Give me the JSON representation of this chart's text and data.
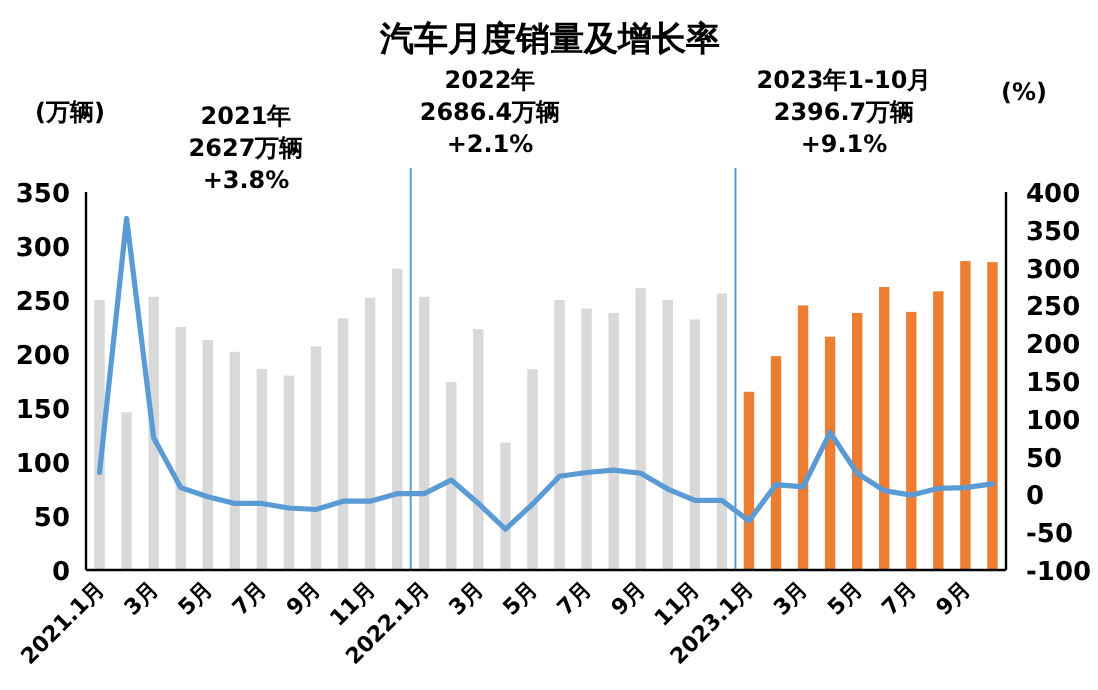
{
  "chart_data": {
    "type": "bar",
    "title": "汽车月度销量及增长率",
    "ylabel": "(万辆)",
    "y2label": "(%)",
    "categories": [
      "2021.1月",
      null,
      "3月",
      null,
      "5月",
      null,
      "7月",
      null,
      "9月",
      null,
      "11月",
      null,
      "2022.1月",
      null,
      "3月",
      null,
      "5月",
      null,
      "7月",
      null,
      "9月",
      null,
      "11月",
      null,
      "2023.1月",
      null,
      "3月",
      null,
      "5月",
      null,
      "7月",
      null,
      "9月",
      null
    ],
    "series": [
      {
        "colors": [
          "#d9d9d9",
          "#d9d9d9",
          "#d9d9d9",
          "#d9d9d9",
          "#d9d9d9",
          "#d9d9d9",
          "#d9d9d9",
          "#d9d9d9",
          "#d9d9d9",
          "#d9d9d9",
          "#d9d9d9",
          "#d9d9d9",
          "#d9d9d9",
          "#d9d9d9",
          "#d9d9d9",
          "#d9d9d9",
          "#d9d9d9",
          "#d9d9d9",
          "#d9d9d9",
          "#d9d9d9",
          "#d9d9d9",
          "#d9d9d9",
          "#d9d9d9",
          "#d9d9d9",
          "#ed7d31",
          "#ed7d31",
          "#ed7d31",
          "#ed7d31",
          "#ed7d31",
          "#ed7d31",
          "#ed7d31",
          "#ed7d31",
          "#ed7d31",
          "#ed7d31"
        ],
        "values": [
          250,
          146,
          253,
          225,
          213,
          202,
          186,
          180,
          207,
          233,
          252,
          279,
          253,
          174,
          223,
          118,
          186,
          250,
          242,
          238,
          261,
          250,
          232,
          256,
          165,
          198,
          245,
          216,
          238,
          262,
          239,
          258,
          286,
          285
        ]
      },
      {
        "type": "line",
        "axis": "y2",
        "color": "#5b9bd5",
        "values": [
          29,
          365,
          75,
          9,
          -3,
          -12,
          -12,
          -18,
          -20,
          -9,
          -9,
          1,
          1,
          19,
          -12,
          -46,
          -13,
          24,
          29,
          32,
          28,
          7,
          -8,
          -8,
          -35,
          13,
          10,
          82,
          28,
          5,
          -1,
          8,
          9,
          14
        ]
      }
    ],
    "ylim": [
      0,
      350
    ],
    "yticks": [
      0,
      50,
      100,
      150,
      200,
      250,
      300,
      350
    ],
    "y2lim": [
      -100,
      400
    ],
    "y2ticks": [
      -100,
      -50,
      0,
      50,
      100,
      150,
      200,
      250,
      300,
      350,
      400
    ],
    "annotations": [
      "2021年\n2627万辆\n+3.8%",
      "2022年\n2686.4万辆\n+2.1%",
      "2023年1-10月\n2396.7万辆\n+9.1%"
    ],
    "grid": false
  }
}
